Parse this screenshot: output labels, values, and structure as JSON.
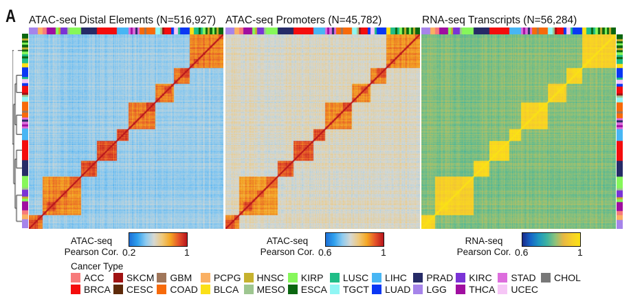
{
  "figure": {
    "panel_letter": "A"
  },
  "chart_data": [
    {
      "type": "heatmap",
      "title": "ATAC-seq Distal Elements (N=516,927)",
      "colorbar": {
        "label_line1": "ATAC-seq",
        "label_line2": "Pearson Cor.",
        "min_label": "0.2",
        "max_label": "1",
        "range": [
          0.2,
          1
        ],
        "colormap": [
          "#1c6fd6",
          "#2fa0ee",
          "#8ccaf0",
          "#d6d8d2",
          "#efc87a",
          "#f4a623",
          "#e5532a",
          "#b8151c"
        ]
      },
      "background_level": 0.45,
      "within_cluster_level": 0.82,
      "diagonal_level": 1.0
    },
    {
      "type": "heatmap",
      "title": "ATAC-seq Promoters (N=45,782)",
      "colorbar": {
        "label_line1": "ATAC-seq",
        "label_line2": "Pearson Cor.",
        "min_label": "0.6",
        "max_label": "1",
        "range": [
          0.6,
          1
        ],
        "colormap": [
          "#1c6fd6",
          "#2fa0ee",
          "#8ccaf0",
          "#d6d8d2",
          "#efc87a",
          "#f4a623",
          "#e5532a",
          "#b8151c"
        ]
      },
      "background_level": 0.78,
      "within_cluster_level": 0.9,
      "diagonal_level": 1.0
    },
    {
      "type": "heatmap",
      "title": "RNA-seq Transcripts (N=56,284)",
      "colorbar": {
        "label_line1": "RNA-seq",
        "label_line2": "Pearson Cor.",
        "min_label": "0.6",
        "max_label": "1",
        "range": [
          0.6,
          1
        ],
        "colormap": [
          "#1a2a8a",
          "#1565c8",
          "#1e97c0",
          "#3fb3a0",
          "#8ec27a",
          "#e8b843",
          "#f7cf2a",
          "#fbe214"
        ]
      },
      "background_level": 0.82,
      "within_cluster_level": 0.95,
      "diagonal_level": 1.0
    }
  ],
  "sample_order_blocks": [
    [
      "LGG",
      4
    ],
    [
      "PCPG",
      2
    ],
    [
      "ACC",
      2
    ],
    [
      "THCA",
      4
    ],
    [
      "KIRP",
      1
    ],
    [
      "HNSC",
      1
    ],
    [
      "KIRC",
      3
    ],
    [
      "MESO",
      1
    ],
    [
      "KIRP",
      5
    ],
    [
      "PRAD",
      7
    ],
    [
      "BRCA",
      9
    ],
    [
      "LIHC",
      5
    ],
    [
      "STAD",
      1
    ],
    [
      "THCA",
      1
    ],
    [
      "STAD",
      1
    ],
    [
      "PRAD",
      1
    ],
    [
      "STAD",
      1
    ],
    [
      "COAD",
      2
    ],
    [
      "GBM",
      1
    ],
    [
      "COAD",
      4
    ],
    [
      "TGCT",
      2
    ],
    [
      "MESO",
      1
    ],
    [
      "SKCM",
      1
    ],
    [
      "BRCA",
      3
    ],
    [
      "LUAD",
      1
    ],
    [
      "UCEC",
      2
    ],
    [
      "LUSC",
      1
    ],
    [
      "LUAD",
      4
    ],
    [
      "BLCA",
      2
    ],
    [
      "LUSC",
      2
    ],
    [
      "ESCA",
      1
    ],
    [
      "LUSC",
      1
    ],
    [
      "KIRP",
      1
    ],
    [
      "ESCA",
      1
    ],
    [
      "HNSC",
      1
    ],
    [
      "ESCA",
      1
    ],
    [
      "KIRP",
      1
    ],
    [
      "ESCA",
      1
    ],
    [
      "HNSC",
      1
    ],
    [
      "ESCA",
      2
    ]
  ],
  "cluster_groups": [
    [
      0,
      1
    ],
    [
      2,
      8
    ],
    [
      9,
      9
    ],
    [
      10,
      10
    ],
    [
      11,
      11
    ],
    [
      12,
      19
    ],
    [
      20,
      24
    ],
    [
      25,
      27
    ],
    [
      28,
      39
    ]
  ],
  "legend": {
    "title": "Cancer Type",
    "items": [
      {
        "code": "ACC",
        "color": "#f77b7b"
      },
      {
        "code": "BRCA",
        "color": "#f40d0d"
      },
      {
        "code": "SKCM",
        "color": "#a01212"
      },
      {
        "code": "CESC",
        "color": "#5e2a0a"
      },
      {
        "code": "GBM",
        "color": "#a0765a"
      },
      {
        "code": "COAD",
        "color": "#f76a0a"
      },
      {
        "code": "PCPG",
        "color": "#fab063"
      },
      {
        "code": "BLCA",
        "color": "#fbe017"
      },
      {
        "code": "HNSC",
        "color": "#c6b22e"
      },
      {
        "code": "MESO",
        "color": "#9ec690"
      },
      {
        "code": "KIRP",
        "color": "#86f75a"
      },
      {
        "code": "ESCA",
        "color": "#0a6610"
      },
      {
        "code": "LUSC",
        "color": "#1fbd87"
      },
      {
        "code": "TGCT",
        "color": "#90f6f4"
      },
      {
        "code": "LIHC",
        "color": "#48b6f4"
      },
      {
        "code": "LUAD",
        "color": "#0a37f4"
      },
      {
        "code": "PRAD",
        "color": "#262b67"
      },
      {
        "code": "LGG",
        "color": "#a684ea"
      },
      {
        "code": "KIRC",
        "color": "#7a33d6"
      },
      {
        "code": "THCA",
        "color": "#a00ea0"
      },
      {
        "code": "STAD",
        "color": "#dd6ddd"
      },
      {
        "code": "UCEC",
        "color": "#f6c6f6"
      },
      {
        "code": "CHOL",
        "color": "#787878"
      }
    ]
  }
}
